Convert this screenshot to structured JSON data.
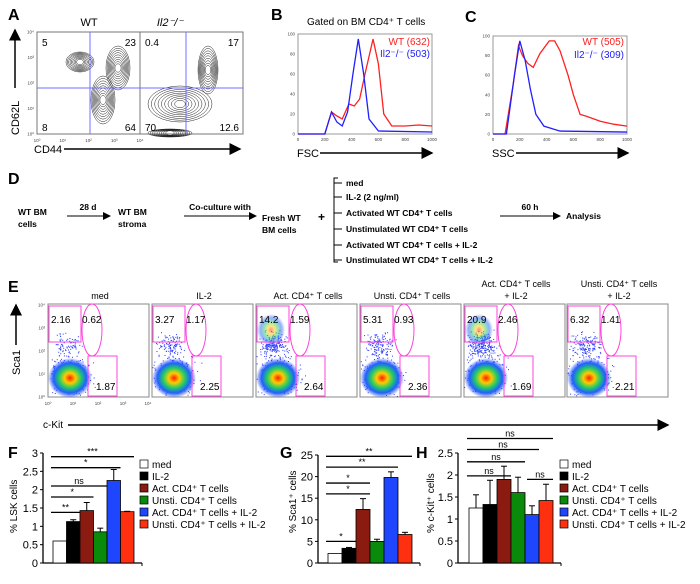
{
  "panels": {
    "A": "A",
    "B": "B",
    "C": "C",
    "D": "D",
    "E": "E",
    "F": "F",
    "G": "G",
    "H": "H"
  },
  "panel_a": {
    "titles": [
      "WT",
      "Il2⁻/⁻"
    ],
    "y_label": "CD62L",
    "x_label": "CD44",
    "quadrants": [
      [
        "5",
        "23",
        "8",
        "64"
      ],
      [
        "0.4",
        "17",
        "70",
        "12.6"
      ]
    ],
    "ticks": [
      "10⁰",
      "10¹",
      "10²",
      "10³",
      "10⁴"
    ]
  },
  "panel_b": {
    "title": "Gated on BM CD4⁺ T cells",
    "x_label": "FSC",
    "legend": [
      "WT (632)",
      "Il2⁻/⁻ (503)"
    ]
  },
  "panel_c": {
    "x_label": "SSC",
    "legend": [
      "WT (505)",
      "Il2⁻/⁻ (309)"
    ]
  },
  "hist_ticks": {
    "y": [
      "0",
      "20",
      "40",
      "60",
      "80",
      "100"
    ],
    "x": [
      "0",
      "200",
      "400",
      "600",
      "800",
      "1000"
    ]
  },
  "colors": {
    "wt": "#ff2020",
    "ko": "#2020ff",
    "gate": "#ff44dd",
    "med": "#ffffff",
    "il2": "#000000",
    "act": "#8b1a10",
    "unsti": "#0a8a0a",
    "act_il2": "#1e46ff",
    "unsti_il2": "#ff3010"
  },
  "panel_d": {
    "start": [
      "WT BM",
      "cells"
    ],
    "step1": "28 d",
    "stroma": [
      "WT BM",
      "stroma"
    ],
    "step2": "Co-culture with",
    "fresh": [
      "Fresh WT",
      "BM cells"
    ],
    "plus": "+",
    "conditions": [
      "med",
      "IL-2 (2 ng/ml)",
      "Activated WT CD4⁺ T cells",
      "Unstimulated WT CD4⁺ T cells",
      "Activated WT CD4⁺ T cells + IL-2",
      "Unstimulated WT CD4⁺ T cells + IL-2"
    ],
    "step3": "60 h",
    "end": "Analysis"
  },
  "panel_e": {
    "titles": [
      [
        "",
        "med"
      ],
      [
        "",
        "IL-2"
      ],
      [
        "",
        "Act. CD4⁺ T cells"
      ],
      [
        "",
        "Unsti. CD4⁺ T cells"
      ],
      [
        "Act. CD4⁺ T cells",
        "+ IL-2"
      ],
      [
        "Unsti. CD4⁺ T cells",
        "+ IL-2"
      ]
    ],
    "gates": [
      [
        "2.16",
        "0.62",
        "1.87"
      ],
      [
        "3.27",
        "1.17",
        "2.25"
      ],
      [
        "14.2",
        "1.59",
        "2.64"
      ],
      [
        "5.31",
        "0.93",
        "2.36"
      ],
      [
        "20.9",
        "2.46",
        "1.69"
      ],
      [
        "6.32",
        "1.41",
        "2.21"
      ]
    ],
    "y_label": "Sca1",
    "x_label": "c-Kit"
  },
  "legend": [
    "med",
    "IL-2",
    "Act. CD4⁺ T cells",
    "Unsti. CD4⁺ T cells",
    "Act. CD4⁺ T cells + IL-2",
    "Unsti. CD4⁺ T cells + IL-2"
  ],
  "chart_data": [
    {
      "type": "line",
      "panel": "B",
      "xlabel": "FSC",
      "xlim": [
        0,
        1000
      ],
      "ylim": [
        0,
        100
      ],
      "series": [
        {
          "name": "WT (632)",
          "points": [
            [
              0,
              0
            ],
            [
              200,
              0
            ],
            [
              250,
              22
            ],
            [
              290,
              18
            ],
            [
              330,
              15
            ],
            [
              380,
              30
            ],
            [
              420,
              28
            ],
            [
              460,
              35
            ],
            [
              500,
              60
            ],
            [
              560,
              95
            ],
            [
              600,
              70
            ],
            [
              640,
              20
            ],
            [
              700,
              8
            ],
            [
              800,
              8
            ],
            [
              900,
              9
            ],
            [
              1000,
              8
            ]
          ]
        },
        {
          "name": "Il2⁻/⁻ (503)",
          "points": [
            [
              0,
              0
            ],
            [
              200,
              0
            ],
            [
              250,
              22
            ],
            [
              290,
              12
            ],
            [
              330,
              8
            ],
            [
              370,
              22
            ],
            [
              410,
              60
            ],
            [
              450,
              95
            ],
            [
              490,
              60
            ],
            [
              530,
              15
            ],
            [
              600,
              3
            ],
            [
              1000,
              2
            ]
          ]
        }
      ]
    },
    {
      "type": "line",
      "panel": "C",
      "xlabel": "SSC",
      "xlim": [
        0,
        1000
      ],
      "ylim": [
        0,
        100
      ],
      "series": [
        {
          "name": "WT (505)",
          "points": [
            [
              0,
              0
            ],
            [
              90,
              0
            ],
            [
              150,
              50
            ],
            [
              190,
              90
            ],
            [
              220,
              80
            ],
            [
              260,
              72
            ],
            [
              300,
              68
            ],
            [
              350,
              82
            ],
            [
              420,
              95
            ],
            [
              460,
              95
            ],
            [
              500,
              85
            ],
            [
              560,
              60
            ],
            [
              600,
              40
            ],
            [
              650,
              20
            ],
            [
              700,
              18
            ],
            [
              800,
              13
            ],
            [
              900,
              10
            ],
            [
              1000,
              8
            ]
          ]
        },
        {
          "name": "Il2⁻/⁻ (309)",
          "points": [
            [
              0,
              0
            ],
            [
              100,
              0
            ],
            [
              160,
              60
            ],
            [
              200,
              95
            ],
            [
              240,
              75
            ],
            [
              280,
              45
            ],
            [
              320,
              20
            ],
            [
              380,
              8
            ],
            [
              500,
              3
            ],
            [
              1000,
              2
            ]
          ]
        }
      ]
    },
    {
      "type": "bar",
      "panel": "F",
      "ylabel": "% LSK cells",
      "ylim": [
        0,
        3
      ],
      "yticks": [
        "0",
        "0.5",
        "1",
        "1.5",
        "2",
        "2.5",
        "3"
      ],
      "values": [
        0.6,
        1.13,
        1.43,
        0.85,
        2.25,
        1.4
      ],
      "errors": [
        0,
        0.05,
        0.22,
        0.1,
        0.3,
        0.01
      ],
      "sig": [
        {
          "label": "***",
          "to": 5,
          "y": 2.9
        },
        {
          "label": "*",
          "to": 4,
          "y": 2.6
        },
        {
          "label": "ns",
          "to": 3,
          "y": 2.1
        },
        {
          "label": "*",
          "to": 2,
          "y": 1.8
        },
        {
          "label": "**",
          "to": 1,
          "y": 1.38
        }
      ]
    },
    {
      "type": "bar",
      "panel": "G",
      "ylabel": "% Sca1⁺ cells",
      "ylim": [
        0,
        25
      ],
      "yticks": [
        "0",
        "5",
        "10",
        "15",
        "20",
        "25"
      ],
      "values": [
        2.2,
        3.4,
        12.4,
        5,
        19.8,
        6.6
      ],
      "errors": [
        0,
        0.2,
        2.5,
        0.5,
        1.3,
        0.5
      ],
      "sig": [
        {
          "label": "**",
          "to": 5,
          "y": 24.7
        },
        {
          "label": "**",
          "to": 4,
          "y": 22.2
        },
        {
          "label": "*",
          "to": 2,
          "y": 18.5
        },
        {
          "label": "*",
          "to": 2,
          "y": 16
        },
        {
          "label": "*",
          "to": 1,
          "y": 5
        }
      ]
    },
    {
      "type": "bar",
      "panel": "H",
      "ylabel": "% c-Kit⁺ cells",
      "ylim": [
        0,
        2.5
      ],
      "yticks": [
        "0",
        "0.5",
        "1",
        "1.5",
        "2",
        "2.5"
      ],
      "values": [
        1.25,
        1.33,
        1.9,
        1.6,
        1.1,
        1.42
      ],
      "errors": [
        0.3,
        0.55,
        0.3,
        0.35,
        0.2,
        0.37
      ],
      "sig": [
        {
          "label": "ns",
          "to": 5,
          "y": 2.83,
          "from": 0
        },
        {
          "label": "ns",
          "to": 4,
          "y": 2.58,
          "from": 0
        },
        {
          "label": "ns",
          "to": 3,
          "y": 2.3,
          "from": 0
        },
        {
          "label": "ns",
          "to": 2,
          "y": 1.98,
          "from": 0
        },
        {
          "label": "ns",
          "to": 6,
          "y": 1.9,
          "from": 4
        }
      ]
    }
  ]
}
